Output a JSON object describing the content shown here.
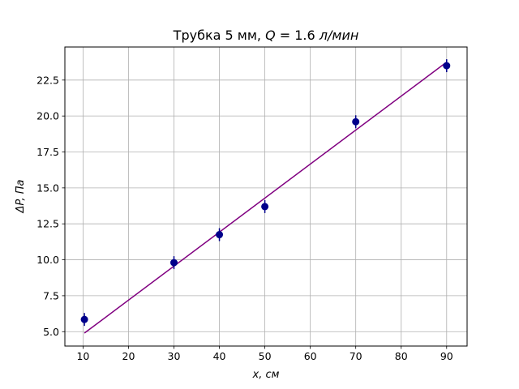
{
  "chart_data": {
    "type": "scatter",
    "title_plain": "Трубка 5 мм, ",
    "title_math_var": "Q",
    "title_math_rest": " = 1.6 ",
    "title_units": "л/мин",
    "xlabel": "x,  см",
    "ylabel": "ΔP,  Па",
    "xlim": [
      6,
      94.5
    ],
    "ylim": [
      4.0,
      24.8
    ],
    "xticks": [
      10,
      20,
      30,
      40,
      50,
      60,
      70,
      80,
      90
    ],
    "xtick_labels": [
      "10",
      "20",
      "30",
      "40",
      "50",
      "60",
      "70",
      "80",
      "90"
    ],
    "yticks": [
      5.0,
      7.5,
      10.0,
      12.5,
      15.0,
      17.5,
      20.0,
      22.5
    ],
    "ytick_labels": [
      "5.0",
      "7.5",
      "10.0",
      "12.5",
      "15.0",
      "17.5",
      "20.0",
      "22.5"
    ],
    "grid": true,
    "series": [
      {
        "kind": "points_with_errorbars",
        "color": "#00008b",
        "x": [
          10.3,
          30,
          40,
          50,
          70,
          90
        ],
        "y": [
          5.85,
          9.8,
          11.75,
          13.7,
          19.6,
          23.5
        ],
        "yerr": [
          0.45,
          0.45,
          0.45,
          0.45,
          0.45,
          0.45
        ]
      },
      {
        "kind": "fit_line",
        "color": "#800080",
        "x": [
          10.3,
          90
        ],
        "y": [
          4.9,
          23.75
        ]
      }
    ]
  }
}
